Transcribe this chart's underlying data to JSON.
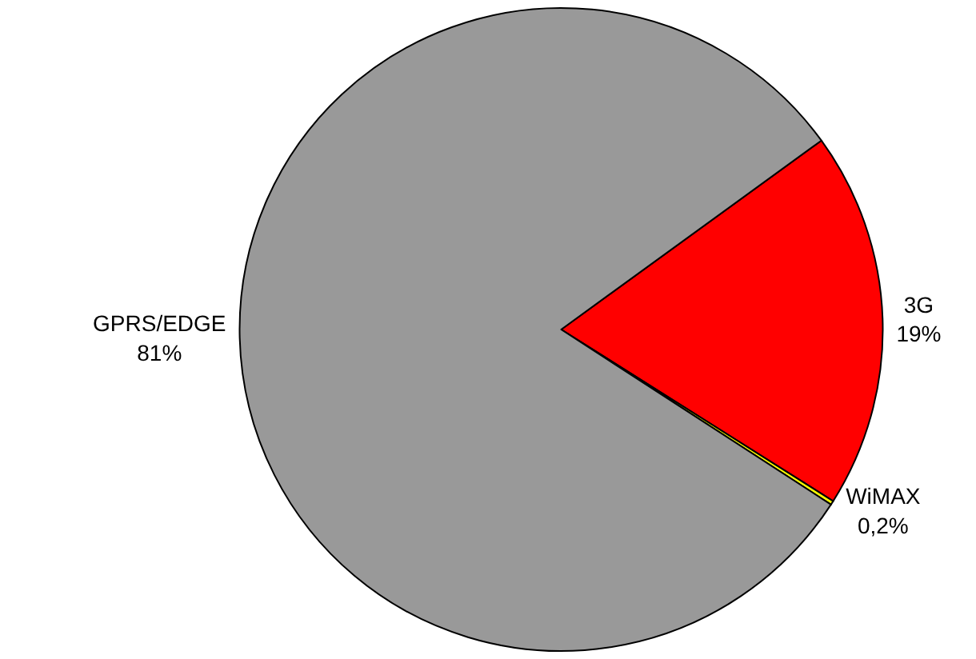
{
  "chart_data": {
    "type": "pie",
    "categories": [
      "3G",
      "WiMAX",
      "GPRS/EDGE"
    ],
    "values": [
      19,
      0.2,
      81
    ],
    "value_labels": [
      "19%",
      "0,2%",
      "81%"
    ],
    "colors": [
      "#ff0000",
      "#ffff00",
      "#999999"
    ],
    "legend": false
  }
}
